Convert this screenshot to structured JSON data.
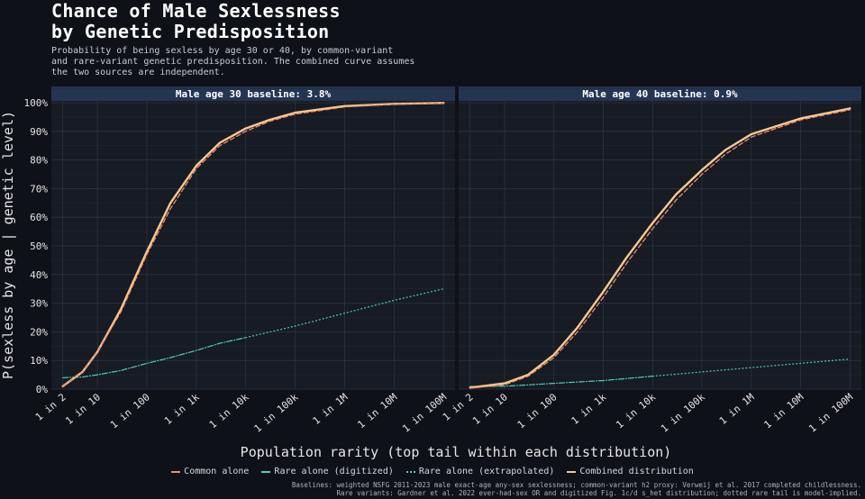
{
  "header": {
    "title_lines": [
      "Chance of Male Sexlessness",
      "by Genetic Predisposition"
    ],
    "subtitle_lines": [
      "Probability of being sexless by age 30 or 40, by common-variant",
      "and rare-variant genetic predisposition. The combined curve assumes",
      "the two sources are independent."
    ]
  },
  "legend": [
    {
      "label": "Common alone",
      "color": "#f08a6a",
      "style": "dashed"
    },
    {
      "label": "Rare alone (digitized)",
      "color": "#4fd1b8",
      "style": "dashdot"
    },
    {
      "label": "Rare alone (extrapolated)",
      "color": "#4fd1b8",
      "style": "dotted"
    },
    {
      "label": "Combined distribution",
      "color": "#f6c98e",
      "style": "solid"
    }
  ],
  "footnote_lines": [
    "Baselines: weighted NSFG 2011-2023 male exact-age any-sex sexlessness; common-variant h2 proxy: Verweij et al. 2017 completed childlessness.",
    "Rare variants: Gardner et al. 2022 ever-had-sex OR and digitized Fig. 1c/d s_het distribution; dotted rare tail is model-implied."
  ],
  "chart_data": {
    "type": "line",
    "xlabel": "Population rarity (top tail within each distribution)",
    "ylabel": "P(sexless by age | genetic level)",
    "x_scale": "log10",
    "x_ticks": [
      {
        "value": 2,
        "label": "1 in 2"
      },
      {
        "value": 10,
        "label": "1 in 10"
      },
      {
        "value": 100,
        "label": "1 in 100"
      },
      {
        "value": 1000,
        "label": "1 in 1k"
      },
      {
        "value": 10000,
        "label": "1 in 10k"
      },
      {
        "value": 100000,
        "label": "1 in 100k"
      },
      {
        "value": 1000000,
        "label": "1 in 1M"
      },
      {
        "value": 10000000,
        "label": "1 in 10M"
      },
      {
        "value": 100000000,
        "label": "1 in 100M"
      }
    ],
    "ylim": [
      0,
      100
    ],
    "y_ticks": [
      "0%",
      "10%",
      "20%",
      "30%",
      "40%",
      "50%",
      "60%",
      "70%",
      "80%",
      "90%",
      "100%"
    ],
    "grid": true,
    "panels": [
      {
        "title": "Male age 30 baseline: 3.8%",
        "series": [
          {
            "name": "Common alone",
            "x": [
              2,
              5,
              10,
              30,
              100,
              300,
              1000,
              3000,
              10000,
              30000,
              100000,
              1000000,
              10000000,
              100000000
            ],
            "values": [
              1,
              6,
              13,
              27,
              47,
              63,
              77,
              85,
              90,
              93.5,
              96,
              98.5,
              99.5,
              99.8
            ]
          },
          {
            "name": "Rare alone (digitized)",
            "x": [
              2,
              5,
              10,
              30,
              100,
              300,
              1000,
              3000,
              10000
            ],
            "values": [
              4,
              4.2,
              5,
              6.5,
              9,
              11,
              13.5,
              16,
              18
            ]
          },
          {
            "name": "Rare alone (extrapolated)",
            "x": [
              10000,
              100000,
              1000000,
              10000000,
              100000000
            ],
            "values": [
              18,
              22,
              26.5,
              31,
              35
            ]
          },
          {
            "name": "Combined distribution",
            "x": [
              2,
              5,
              10,
              30,
              100,
              300,
              1000,
              3000,
              10000,
              30000,
              100000,
              1000000,
              10000000,
              100000000
            ],
            "values": [
              1,
              6,
              13,
              28,
              48,
              65,
              78,
              86,
              91,
              94,
              96.5,
              98.8,
              99.6,
              99.9
            ]
          }
        ]
      },
      {
        "title": "Male age 40 baseline: 0.9%",
        "series": [
          {
            "name": "Common alone",
            "x": [
              2,
              10,
              30,
              100,
              300,
              1000,
              3000,
              10000,
              30000,
              100000,
              300000,
              1000000,
              10000000,
              100000000
            ],
            "values": [
              0.3,
              1.5,
              4.5,
              11,
              20,
              32,
              44,
              56,
              66,
              75,
              82,
              88,
              94,
              97.5
            ]
          },
          {
            "name": "Rare alone (digitized)",
            "x": [
              2,
              10,
              100,
              1000,
              10000
            ],
            "values": [
              0.9,
              1,
              2,
              3,
              4.5
            ]
          },
          {
            "name": "Rare alone (extrapolated)",
            "x": [
              10000,
              100000,
              1000000,
              10000000,
              100000000
            ],
            "values": [
              4.5,
              6,
              7.5,
              9,
              10.5
            ]
          },
          {
            "name": "Combined distribution",
            "x": [
              2,
              10,
              30,
              100,
              300,
              1000,
              3000,
              10000,
              30000,
              100000,
              300000,
              1000000,
              10000000,
              100000000
            ],
            "values": [
              0.5,
              2,
              5,
              12,
              21.5,
              34,
              46,
              58,
              68,
              76.5,
              83.5,
              89,
              94.5,
              98
            ]
          }
        ]
      }
    ]
  }
}
